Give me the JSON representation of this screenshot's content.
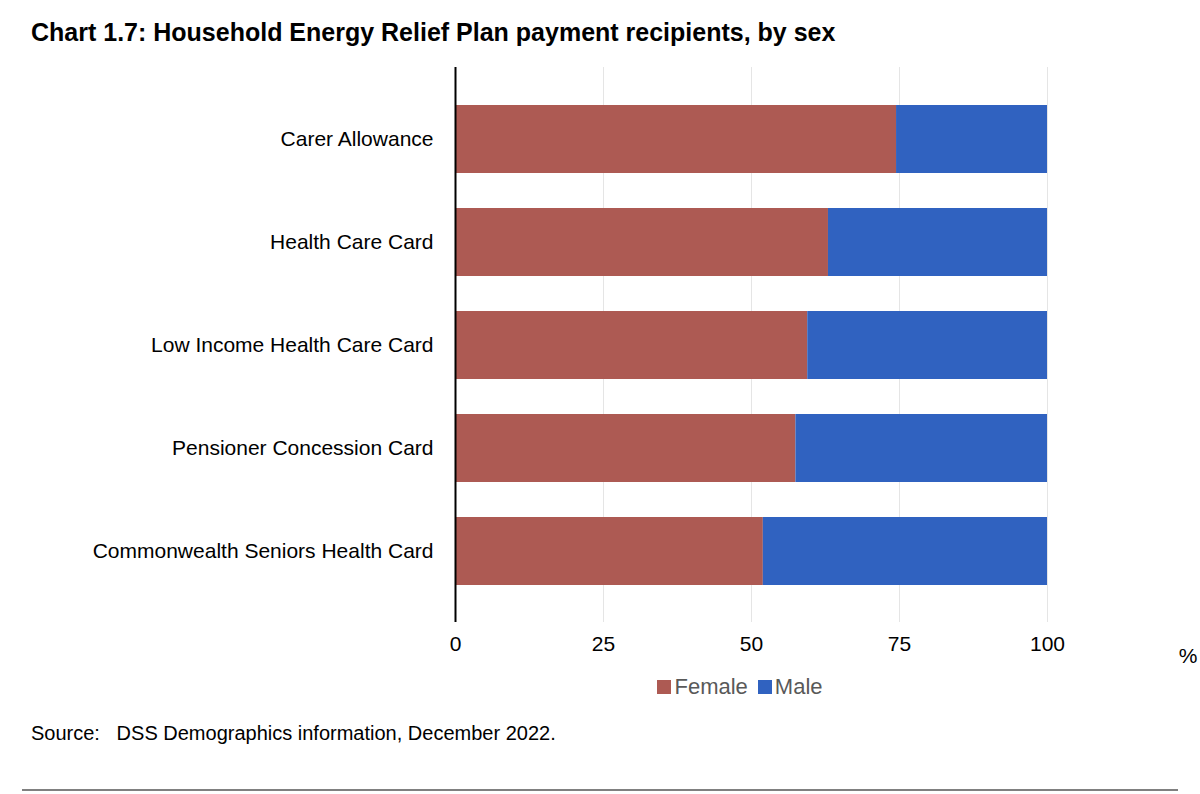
{
  "chart_data": {
    "type": "bar",
    "title": "Chart 1.7: Household Energy Relief Plan payment recipients, by sex",
    "orientation": "horizontal",
    "stacked": true,
    "categories": [
      "Carer Allowance",
      "Health Care Card",
      "Low Income Health Care Card",
      "Pensioner Concession Card",
      "Commonwealth Seniors Health Card"
    ],
    "series": [
      {
        "name": "Female",
        "color": "#ad5a53",
        "values": [
          74.5,
          63,
          59.5,
          57.5,
          52
        ]
      },
      {
        "name": "Male",
        "color": "#3062c0",
        "values": [
          25.5,
          37,
          40.5,
          42.5,
          48
        ]
      }
    ],
    "xlim": [
      0,
      100
    ],
    "xticks": [
      0,
      25,
      50,
      75,
      100
    ],
    "x_label": "%",
    "grid": true,
    "legend": "bottom",
    "source": "Source:   DSS Demographics information, December 2022."
  }
}
